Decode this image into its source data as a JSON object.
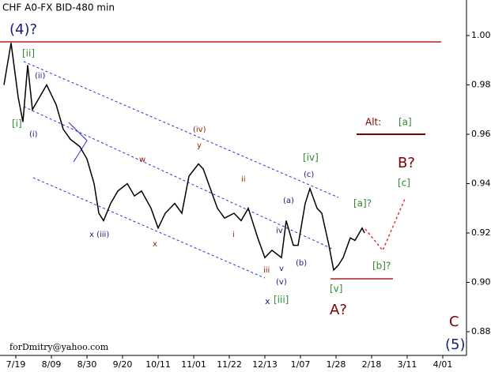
{
  "chart_data": {
    "type": "line",
    "title": "CHF A0-FX BID-480 min",
    "x": [
      -5,
      -2,
      1,
      3,
      5,
      7,
      10,
      13,
      17,
      20,
      23,
      27,
      30,
      33,
      35,
      37,
      40,
      43,
      47,
      50,
      53,
      57,
      60,
      63,
      67,
      70,
      73,
      77,
      79,
      82,
      85,
      88,
      92,
      95,
      98,
      102,
      105,
      108,
      112,
      114,
      117,
      119,
      122,
      124,
      127,
      129,
      132,
      134,
      136,
      138,
      141,
      143,
      146,
      147
    ],
    "series": [
      {
        "name": "CHF",
        "color": "#000000",
        "values": [
          0.98,
          0.997,
          0.975,
          0.965,
          0.988,
          0.97,
          0.975,
          0.98,
          0.972,
          0.962,
          0.958,
          0.955,
          0.95,
          0.94,
          0.928,
          0.925,
          0.932,
          0.937,
          0.94,
          0.935,
          0.937,
          0.93,
          0.922,
          0.928,
          0.932,
          0.928,
          0.943,
          0.948,
          0.946,
          0.938,
          0.93,
          0.926,
          0.928,
          0.925,
          0.93,
          0.918,
          0.91,
          0.913,
          0.91,
          0.925,
          0.915,
          0.915,
          0.932,
          0.938,
          0.93,
          0.928,
          0.915,
          0.905,
          0.907,
          0.91,
          0.918,
          0.917,
          0.922,
          0.92
        ]
      }
    ],
    "xlim": [
      -6.67,
      190
    ],
    "xticks": [
      {
        "value": 0,
        "label": "7/19"
      },
      {
        "value": 15,
        "label": "8/09"
      },
      {
        "value": 30,
        "label": "8/30"
      },
      {
        "value": 45,
        "label": "9/20"
      },
      {
        "value": 60,
        "label": "10/11"
      },
      {
        "value": 75,
        "label": "11/01"
      },
      {
        "value": 90,
        "label": "11/22"
      },
      {
        "value": 105,
        "label": "12/13"
      },
      {
        "value": 120,
        "label": "1/07"
      },
      {
        "value": 135,
        "label": "1/28"
      },
      {
        "value": 150,
        "label": "2/18"
      },
      {
        "value": 165,
        "label": "3/11"
      },
      {
        "value": 180,
        "label": "4/01"
      }
    ],
    "ylim": [
      0.8704,
      1.0144
    ],
    "yticks": [
      {
        "value": 0.88,
        "label": "0.88"
      },
      {
        "value": 0.9,
        "label": "0.90"
      },
      {
        "value": 0.92,
        "label": "0.92"
      },
      {
        "value": 0.94,
        "label": "0.94"
      },
      {
        "value": 0.96,
        "label": "0.96"
      },
      {
        "value": 0.98,
        "label": "0.98"
      },
      {
        "value": 1.0,
        "label": "1.00"
      }
    ],
    "annotations": [
      "(4)?",
      "[ii]",
      "(ii)",
      "[i]",
      "(i)",
      "(iv)",
      "y",
      "w",
      "x (iii)",
      "x",
      "ii",
      "i",
      "iii",
      "v",
      "iv",
      "(a)",
      "(b)",
      "(v)",
      "x",
      "[iii]",
      "[iv]",
      "(c)",
      "[v]",
      "A?",
      "[a]?",
      "[b]?",
      "[c]",
      "B?",
      "Alt:",
      "[a]",
      "C",
      "(5)"
    ],
    "footer": "forDmitry@yahoo.com"
  }
}
